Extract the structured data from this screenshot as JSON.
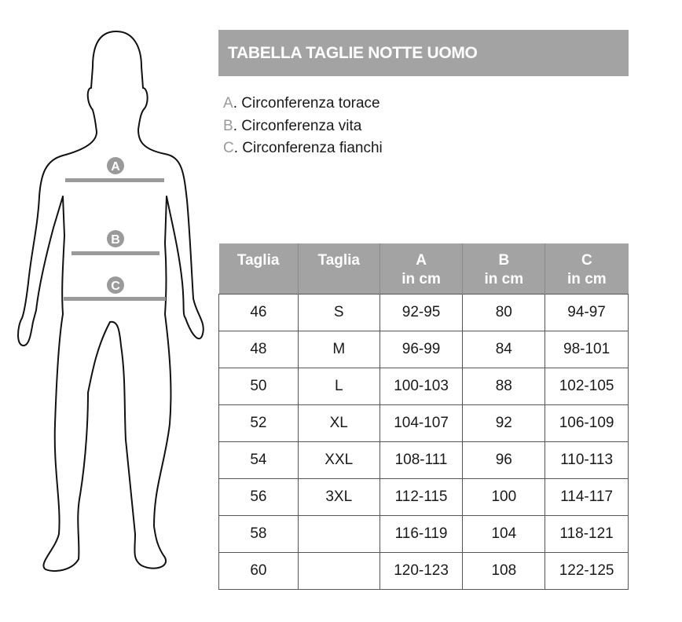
{
  "title": "TABELLA TAGLIE NOTTE UOMO",
  "legend": [
    {
      "key": "A",
      "label": ". Circonferenza torace"
    },
    {
      "key": "B",
      "label": ". Circonferenza vita"
    },
    {
      "key": "C",
      "label": ". Circonferenza fianchi"
    }
  ],
  "figure_markers": [
    "A",
    "B",
    "C"
  ],
  "colors": {
    "header_gray": "#a3a3a3",
    "marker_gray": "#9a9a9a"
  },
  "table": {
    "headers": [
      {
        "line1": "Taglia",
        "line2": ""
      },
      {
        "line1": "Taglia",
        "line2": ""
      },
      {
        "line1": "A",
        "line2": "in cm"
      },
      {
        "line1": "B",
        "line2": "in cm"
      },
      {
        "line1": "C",
        "line2": "in cm"
      }
    ],
    "rows": [
      [
        "46",
        "S",
        "92-95",
        "80",
        "94-97"
      ],
      [
        "48",
        "M",
        "96-99",
        "84",
        "98-101"
      ],
      [
        "50",
        "L",
        "100-103",
        "88",
        "102-105"
      ],
      [
        "52",
        "XL",
        "104-107",
        "92",
        "106-109"
      ],
      [
        "54",
        "XXL",
        "108-111",
        "96",
        "110-113"
      ],
      [
        "56",
        "3XL",
        "112-115",
        "100",
        "114-117"
      ],
      [
        "58",
        "",
        "116-119",
        "104",
        "118-121"
      ],
      [
        "60",
        "",
        "120-123",
        "108",
        "122-125"
      ]
    ]
  }
}
